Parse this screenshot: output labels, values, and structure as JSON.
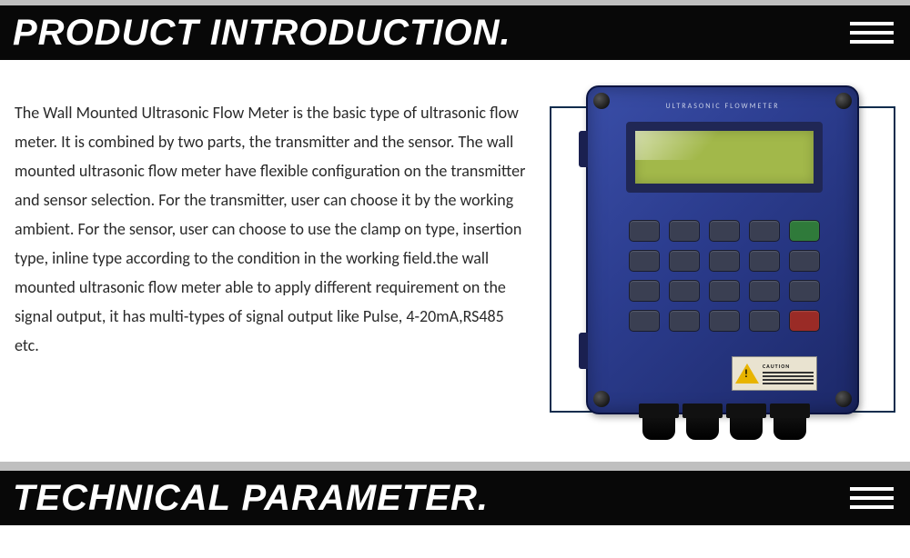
{
  "sections": {
    "intro": {
      "title": "PRODUCT INTRODUCTION."
    },
    "tech": {
      "title": "TECHNICAL PARAMETER."
    }
  },
  "description": "The Wall Mounted Ultrasonic Flow Meter is the basic type of ultrasonic  flow meter. It is combined by two parts, the transmitter and the sensor. The wall mounted ultrasonic flow meter have flexible configuration on the transmitter and sensor selection. For the transmitter, user can choose it by the working ambient. For the sensor, user can choose to use the clamp on type, insertion type, inline type according to the condition in the working field.the wall mounted ultrasonic flow meter able to apply different requirement on the signal output, it has multi-types of signal output like Pulse, 4-20mA,RS485 etc.",
  "device": {
    "label": "ULTRASONIC FLOWMETER",
    "warning_title": "CAUTION",
    "body_color": "#2c3d8f",
    "lcd_color": "#a2b84a",
    "border_color": "#0f2c4d",
    "keypad": {
      "rows": 4,
      "cols": 5,
      "accent_positions": {
        "green": [
          4
        ],
        "red": [
          19
        ]
      }
    },
    "cable_glands": 4
  },
  "layout": {
    "header_bg": "#080808",
    "header_fg": "#ffffff",
    "strip_color": "#bfbfbf",
    "title_fontsize": 40,
    "title_style": "italic",
    "title_weight": 700,
    "body_fontsize": 18,
    "body_lineheight": 32,
    "body_color": "#2a2a2a"
  }
}
